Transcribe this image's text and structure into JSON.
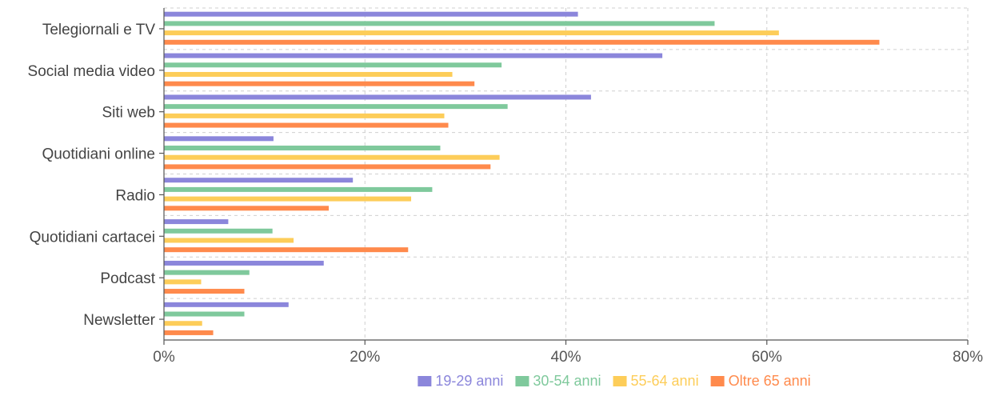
{
  "chart_data": {
    "type": "bar",
    "orientation": "horizontal",
    "categories": [
      "Telegiornali e TV",
      "Social media video",
      "Siti web",
      "Quotidiani online",
      "Radio",
      "Quotidiani cartacei",
      "Podcast",
      "Newsletter"
    ],
    "series": [
      {
        "name": "19-29 anni",
        "color": "#8b86db",
        "values": [
          41.2,
          49.6,
          42.5,
          10.9,
          18.8,
          6.4,
          15.9,
          12.4
        ]
      },
      {
        "name": "30-54 anni",
        "color": "#7fc99c",
        "values": [
          54.8,
          33.6,
          34.2,
          27.5,
          26.7,
          10.8,
          8.5,
          8.0
        ]
      },
      {
        "name": "55-64 anni",
        "color": "#fdcd59",
        "values": [
          61.2,
          28.7,
          27.9,
          33.4,
          24.6,
          12.9,
          3.7,
          3.8
        ]
      },
      {
        "name": "Oltre 65 anni",
        "color": "#ff8a4c",
        "values": [
          71.2,
          30.9,
          28.3,
          32.5,
          16.4,
          24.3,
          8.0,
          4.9
        ]
      }
    ],
    "xlim": [
      0,
      80
    ],
    "xticks": [
      "0%",
      "20%",
      "40%",
      "60%",
      "80%"
    ],
    "grid": true,
    "legend": "bottom-center",
    "xlabel": "",
    "ylabel": "",
    "title": ""
  }
}
